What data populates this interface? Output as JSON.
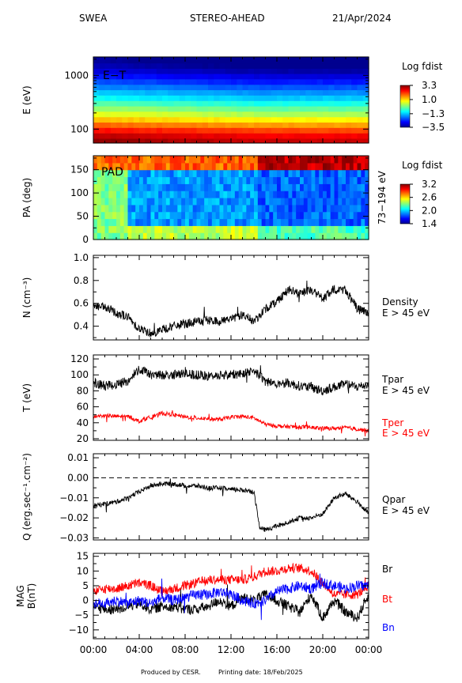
{
  "header": {
    "instrument": "SWEA",
    "spacecraft": "STEREO-AHEAD",
    "date": "21/Apr/2024"
  },
  "footer": {
    "produced": "Produced by CESR.",
    "printing": "Printing date: 18/Feb/2025"
  },
  "colors": {
    "black": "#000000",
    "red": "#ff0000",
    "blue": "#0000ff",
    "colormap": [
      "#00008f",
      "#0000ff",
      "#0080ff",
      "#00ffff",
      "#80ff80",
      "#ffff00",
      "#ff8000",
      "#ff0000",
      "#800000"
    ]
  },
  "x_axis": {
    "tick_labels": [
      "00:00",
      "04:00",
      "08:00",
      "12:00",
      "16:00",
      "20:00",
      "00:00"
    ],
    "tick_hours": [
      0,
      4,
      8,
      12,
      16,
      20,
      24
    ]
  },
  "chart_data": [
    {
      "type": "heatmap",
      "panel_label": "E−T",
      "ylabel": "E (eV)",
      "yscale": "log",
      "ylim": [
        55,
        2200
      ],
      "y_tick_labels": [
        "1000",
        "100"
      ],
      "y_tick_values": [
        1000,
        100
      ],
      "colorbar": {
        "title": "Log fdist",
        "labels": [
          "3.3",
          "1.0",
          "−1.3",
          "−3.5"
        ],
        "values": [
          3.3,
          1.0,
          -1.3,
          -3.5
        ],
        "range": [
          -3.5,
          3.3
        ]
      },
      "energy_bands": [
        60,
        75,
        95,
        120,
        150,
        190,
        240,
        300,
        380,
        480,
        600,
        760,
        960,
        1200,
        1500,
        1900
      ],
      "band_levels": [
        3.2,
        2.9,
        2.4,
        1.8,
        1.2,
        0.6,
        0.1,
        -0.4,
        -0.9,
        -1.3,
        -1.7,
        -2.1,
        -2.5,
        -2.9,
        -3.2,
        -3.4
      ],
      "time_shift": {
        "hours": [
          0,
          14.5,
          24
        ],
        "shift": [
          0.0,
          -0.4,
          -0.4
        ]
      }
    },
    {
      "type": "heatmap",
      "panel_label": "PAD",
      "ylabel": "PA (deg)",
      "ylim": [
        0,
        180
      ],
      "y_tick_labels": [
        "150",
        "100",
        "50",
        "0"
      ],
      "y_tick_values": [
        150,
        100,
        50,
        0
      ],
      "right_label": "73−194 eV",
      "colorbar": {
        "title": "Log fdist",
        "labels": [
          "3.2",
          "2.6",
          "2.0",
          "1.4"
        ],
        "values": [
          3.2,
          2.6,
          2.0,
          1.4
        ],
        "range": [
          1.4,
          3.2
        ]
      },
      "segments": [
        {
          "start": 0.0,
          "end": 3.1,
          "top": 2.8,
          "mid": 2.3,
          "bottom": 2.3
        },
        {
          "start": 3.1,
          "end": 14.4,
          "top": 2.8,
          "mid": 1.9,
          "bottom": 2.4
        },
        {
          "start": 14.4,
          "end": 24.0,
          "top": 3.1,
          "mid": 1.8,
          "bottom": 2.2
        }
      ]
    },
    {
      "type": "line",
      "ylabel": "N (cm⁻³)",
      "ylim": [
        0.28,
        1.02
      ],
      "y_tick_labels": [
        "1.0",
        "0.8",
        "0.6",
        "0.4"
      ],
      "y_tick_values": [
        1.0,
        0.8,
        0.6,
        0.4
      ],
      "series": [
        {
          "name": "Density",
          "sublabel": "E > 45 eV",
          "color": "#000000",
          "x": [
            0,
            1,
            2,
            3,
            4,
            5,
            6,
            7,
            8,
            9,
            10,
            11,
            12,
            13,
            14,
            15,
            16,
            17,
            18,
            19,
            20,
            21,
            22,
            23,
            24
          ],
          "y": [
            0.58,
            0.56,
            0.52,
            0.48,
            0.38,
            0.34,
            0.37,
            0.4,
            0.42,
            0.44,
            0.45,
            0.44,
            0.47,
            0.5,
            0.44,
            0.55,
            0.62,
            0.72,
            0.68,
            0.72,
            0.64,
            0.72,
            0.72,
            0.55,
            0.52
          ],
          "noise": 0.04
        }
      ]
    },
    {
      "type": "line",
      "ylabel": "T (eV)",
      "ylim": [
        18,
        125
      ],
      "y_tick_labels": [
        "120",
        "100",
        "80",
        "60",
        "40",
        "20"
      ],
      "y_tick_values": [
        120,
        100,
        80,
        60,
        40,
        20
      ],
      "series": [
        {
          "name": "Tpar",
          "sublabel": "E > 45 eV",
          "color": "#000000",
          "x": [
            0,
            1,
            2,
            3,
            4,
            5,
            6,
            7,
            8,
            9,
            10,
            11,
            12,
            13,
            14,
            15,
            16,
            17,
            18,
            19,
            20,
            21,
            22,
            23,
            24
          ],
          "y": [
            90,
            86,
            88,
            92,
            108,
            100,
            100,
            100,
            101,
            100,
            98,
            100,
            100,
            102,
            106,
            92,
            89,
            90,
            86,
            84,
            80,
            85,
            88,
            85,
            88
          ],
          "noise": 6
        },
        {
          "name": "Tper",
          "sublabel": "E > 45 eV",
          "color": "#ff0000",
          "x": [
            0,
            1,
            2,
            3,
            4,
            5,
            6,
            7,
            8,
            9,
            10,
            11,
            12,
            13,
            14,
            15,
            16,
            17,
            18,
            19,
            20,
            21,
            22,
            23,
            24
          ],
          "y": [
            48,
            49,
            48,
            48,
            42,
            47,
            52,
            50,
            47,
            46,
            45,
            44,
            47,
            48,
            46,
            38,
            36,
            35,
            35,
            34,
            33,
            33,
            34,
            32,
            30
          ],
          "noise": 2.5
        }
      ]
    },
    {
      "type": "line",
      "ylabel": "Q (erg.sec⁻¹.cm⁻²)",
      "ylim": [
        -0.031,
        0.012
      ],
      "y_tick_labels": [
        "0.01",
        "0.00",
        "−0.01",
        "−0.02",
        "−0.03"
      ],
      "y_tick_values": [
        0.01,
        0.0,
        -0.01,
        -0.02,
        -0.03
      ],
      "reference_line": 0.0,
      "series": [
        {
          "name": "Qpar",
          "sublabel": "E > 45 eV",
          "color": "#000000",
          "x": [
            0,
            1,
            2,
            3,
            4,
            5,
            6,
            7,
            8,
            9,
            10,
            11,
            12,
            13,
            14,
            14.5,
            15,
            16,
            17,
            18,
            19,
            20,
            21,
            22,
            23,
            24
          ],
          "y": [
            -0.014,
            -0.013,
            -0.012,
            -0.01,
            -0.007,
            -0.004,
            -0.003,
            -0.003,
            -0.004,
            -0.004,
            -0.005,
            -0.005,
            -0.006,
            -0.006,
            -0.007,
            -0.025,
            -0.026,
            -0.024,
            -0.022,
            -0.02,
            -0.02,
            -0.018,
            -0.01,
            -0.008,
            -0.012,
            -0.018
          ],
          "noise": 0.0012
        }
      ]
    },
    {
      "type": "line",
      "ylabel": "MAG B(nT)",
      "ylim": [
        -13,
        16
      ],
      "y_tick_labels": [
        "15",
        "10",
        "5",
        "0",
        "−5",
        "−10"
      ],
      "y_tick_values": [
        15,
        10,
        5,
        0,
        -5,
        -10
      ],
      "series": [
        {
          "name": "Br",
          "color": "#000000",
          "x": [
            0,
            1,
            2,
            3,
            4,
            5,
            6,
            7,
            8,
            9,
            10,
            11,
            12,
            13,
            14,
            15,
            16,
            17,
            18,
            19,
            20,
            21,
            22,
            23,
            24
          ],
          "y": [
            -2,
            -3,
            -3,
            -2,
            -1,
            -3,
            -2,
            -2,
            -3,
            -3,
            -2,
            0,
            -2,
            1,
            0,
            2,
            0,
            -2,
            -4,
            2,
            -6,
            0,
            -4,
            -6,
            2
          ],
          "noise": 1.8
        },
        {
          "name": "Bt",
          "color": "#ff0000",
          "x": [
            0,
            1,
            2,
            3,
            4,
            5,
            6,
            7,
            8,
            9,
            10,
            11,
            12,
            13,
            14,
            15,
            16,
            17,
            18,
            19,
            20,
            21,
            22,
            23,
            24
          ],
          "y": [
            3,
            4,
            4,
            5,
            6,
            5,
            3,
            4,
            5,
            6,
            7,
            7,
            7,
            7,
            8,
            10,
            10,
            11,
            11,
            10,
            6,
            2,
            2,
            2,
            5
          ],
          "noise": 1.6
        },
        {
          "name": "Bn",
          "color": "#0000ff",
          "x": [
            0,
            1,
            2,
            3,
            4,
            5,
            6,
            7,
            8,
            9,
            10,
            11,
            12,
            13,
            14,
            15,
            16,
            17,
            18,
            19,
            20,
            21,
            22,
            23,
            24
          ],
          "y": [
            -1,
            -1,
            0,
            -1,
            0,
            -1,
            1,
            0,
            1,
            2,
            2,
            3,
            2,
            0,
            -1,
            0,
            3,
            4,
            5,
            4,
            6,
            5,
            4,
            5,
            5
          ],
          "noise": 1.8
        }
      ]
    }
  ]
}
